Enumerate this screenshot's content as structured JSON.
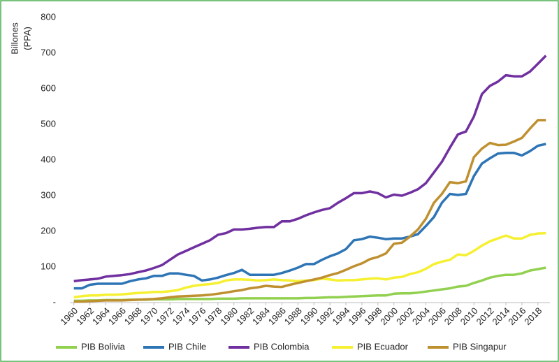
{
  "chart_data": {
    "type": "line",
    "y_label": [
      "Billones",
      "(PPA)"
    ],
    "x": [
      1960,
      1961,
      1962,
      1963,
      1964,
      1965,
      1966,
      1967,
      1968,
      1969,
      1970,
      1971,
      1972,
      1973,
      1974,
      1975,
      1976,
      1977,
      1978,
      1979,
      1980,
      1981,
      1982,
      1983,
      1984,
      1985,
      1986,
      1987,
      1988,
      1989,
      1990,
      1991,
      1992,
      1993,
      1994,
      1995,
      1996,
      1997,
      1998,
      1999,
      2000,
      2001,
      2002,
      2003,
      2004,
      2005,
      2006,
      2007,
      2008,
      2009,
      2010,
      2011,
      2012,
      2013,
      2014,
      2015,
      2016,
      2017,
      2018,
      2019
    ],
    "xlim": [
      1959.5,
      2019.5
    ],
    "xticks": [
      1960,
      1962,
      1964,
      1966,
      1968,
      1970,
      1972,
      1974,
      1976,
      1978,
      1980,
      1982,
      1984,
      1986,
      1988,
      1990,
      1992,
      1994,
      1996,
      1998,
      2000,
      2002,
      2004,
      2006,
      2008,
      2010,
      2012,
      2014,
      2016,
      2018
    ],
    "ylim": [
      0,
      800
    ],
    "yticks": [
      {
        "value": 0,
        "label": "-"
      },
      100,
      200,
      300,
      400,
      500,
      600,
      700,
      800
    ],
    "grid": false,
    "series": [
      {
        "name": "PIB Bolivia",
        "color": "#92d050",
        "values": [
          5,
          5,
          6,
          6,
          7,
          7,
          7,
          8,
          8,
          8,
          9,
          9,
          9,
          10,
          10,
          10,
          10,
          10,
          11,
          11,
          11,
          12,
          12,
          12,
          12,
          12,
          12,
          12,
          12,
          13,
          13,
          14,
          15,
          15,
          16,
          17,
          18,
          19,
          20,
          20,
          25,
          26,
          26,
          28,
          31,
          34,
          37,
          40,
          45,
          47,
          55,
          62,
          70,
          75,
          78,
          78,
          82,
          90,
          94,
          98
        ]
      },
      {
        "name": "PIB Chile",
        "color": "#2e75b6",
        "values": [
          40,
          40,
          50,
          53,
          53,
          53,
          53,
          60,
          65,
          68,
          75,
          75,
          82,
          82,
          78,
          75,
          62,
          65,
          70,
          77,
          83,
          92,
          78,
          78,
          78,
          78,
          83,
          90,
          98,
          108,
          108,
          120,
          130,
          138,
          150,
          175,
          178,
          185,
          182,
          178,
          180,
          180,
          185,
          192,
          215,
          240,
          280,
          305,
          302,
          305,
          355,
          390,
          405,
          418,
          420,
          420,
          413,
          425,
          440,
          445
        ]
      },
      {
        "name": "PIB Colombia",
        "color": "#7030a0",
        "values": [
          60,
          63,
          65,
          67,
          73,
          75,
          77,
          80,
          85,
          90,
          97,
          105,
          120,
          135,
          145,
          155,
          165,
          175,
          190,
          195,
          205,
          205,
          207,
          210,
          212,
          212,
          228,
          228,
          235,
          245,
          253,
          260,
          265,
          280,
          293,
          307,
          307,
          312,
          307,
          295,
          303,
          300,
          308,
          318,
          335,
          365,
          395,
          435,
          472,
          480,
          522,
          585,
          608,
          620,
          638,
          635,
          635,
          648,
          670,
          693
        ]
      },
      {
        "name": "PIB Ecuador",
        "color": "#f5f032",
        "values": [
          15,
          18,
          20,
          20,
          22,
          22,
          23,
          25,
          27,
          28,
          30,
          30,
          32,
          35,
          42,
          47,
          50,
          52,
          55,
          62,
          65,
          65,
          64,
          62,
          63,
          65,
          63,
          62,
          60,
          62,
          63,
          67,
          65,
          62,
          63,
          63,
          65,
          67,
          68,
          65,
          70,
          72,
          80,
          85,
          95,
          108,
          115,
          120,
          135,
          133,
          145,
          160,
          172,
          180,
          188,
          180,
          180,
          190,
          194,
          195
        ]
      },
      {
        "name": "PIB Singapur",
        "color": "#bf9030",
        "values": [
          3,
          3,
          4,
          5,
          6,
          6,
          6,
          7,
          8,
          9,
          10,
          12,
          15,
          17,
          18,
          19,
          20,
          22,
          25,
          28,
          32,
          35,
          40,
          43,
          47,
          45,
          44,
          50,
          55,
          60,
          65,
          70,
          77,
          83,
          92,
          102,
          110,
          122,
          128,
          138,
          165,
          168,
          185,
          205,
          235,
          280,
          305,
          338,
          335,
          340,
          408,
          432,
          448,
          442,
          443,
          452,
          462,
          488,
          512,
          512
        ]
      }
    ]
  }
}
